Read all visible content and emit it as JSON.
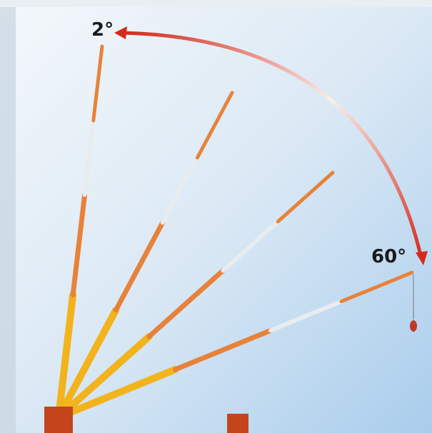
{
  "labels": [
    {
      "text": "2°"
    },
    {
      "text": "60°"
    }
  ]
}
